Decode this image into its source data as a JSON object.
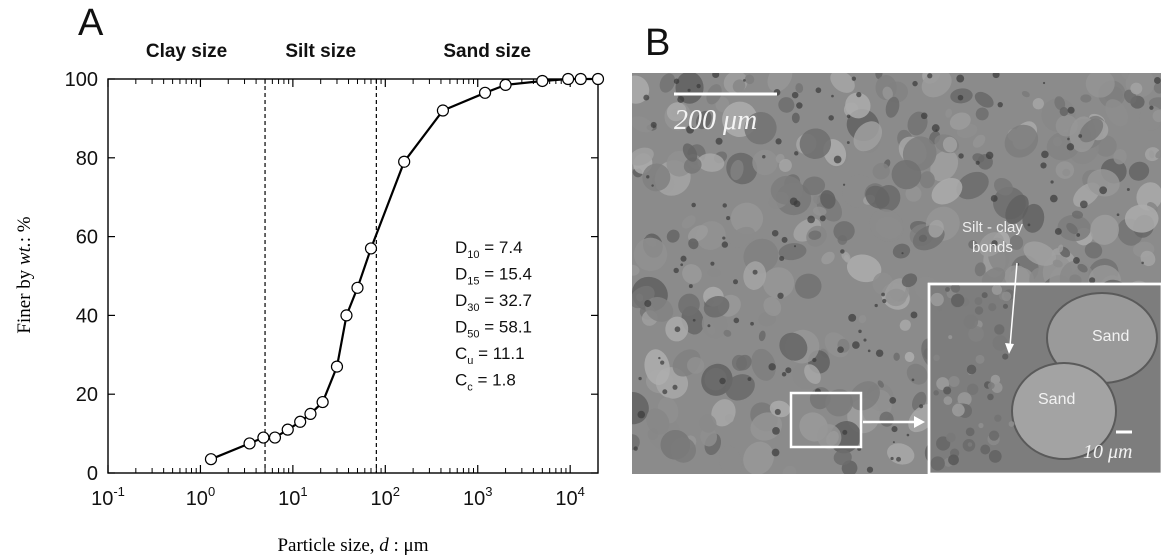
{
  "panel_a_letter": "A",
  "panel_b_letter": "B",
  "chart_data": {
    "type": "scatter",
    "xlabel": "Particle size, d : μm",
    "xlabel_parts": {
      "prefix": "Particle size, ",
      "var": "d",
      "suffix": " : μm"
    },
    "ylabel": "Finer by wt.: %",
    "ylabel_parts": {
      "prefix": "Finer by ",
      "var": "wt.",
      "suffix": ": %"
    },
    "x_scale": "log",
    "xlim": [
      0.1,
      20000
    ],
    "ylim": [
      0,
      100
    ],
    "x_tick_labels": [
      {
        "value": 0.1,
        "base": "10",
        "exp": "-1"
      },
      {
        "value": 1,
        "base": "10",
        "exp": "0"
      },
      {
        "value": 10,
        "base": "10",
        "exp": "1"
      },
      {
        "value": 100,
        "base": "10",
        "exp": "2"
      },
      {
        "value": 1000,
        "base": "10",
        "exp": "3"
      },
      {
        "value": 10000,
        "base": "10",
        "exp": "4"
      }
    ],
    "y_ticks": [
      0,
      20,
      40,
      60,
      80,
      100
    ],
    "grid": false,
    "zones": [
      {
        "label": "Clay size",
        "from": 0.1,
        "to": 5
      },
      {
        "label": "Silt size",
        "from": 5,
        "to": 80
      },
      {
        "label": "Sand size",
        "from": 80,
        "to": 20000
      }
    ],
    "boundaries": [
      5,
      80
    ],
    "series": [
      {
        "marker": "open-circle",
        "line_color": "#000000",
        "points": [
          {
            "x": 1.3,
            "y": 3.5
          },
          {
            "x": 3.4,
            "y": 7.5
          },
          {
            "x": 4.8,
            "y": 9.0
          },
          {
            "x": 6.4,
            "y": 9.0
          },
          {
            "x": 8.8,
            "y": 11.0
          },
          {
            "x": 12,
            "y": 13.0
          },
          {
            "x": 15.5,
            "y": 15.0
          },
          {
            "x": 21,
            "y": 18.0
          },
          {
            "x": 30,
            "y": 27.0
          },
          {
            "x": 38,
            "y": 40.0
          },
          {
            "x": 50,
            "y": 47.0
          },
          {
            "x": 70,
            "y": 57.0
          },
          {
            "x": 160,
            "y": 79.0
          },
          {
            "x": 420,
            "y": 92.0
          },
          {
            "x": 1200,
            "y": 96.5
          },
          {
            "x": 2000,
            "y": 98.5
          },
          {
            "x": 5000,
            "y": 99.5
          },
          {
            "x": 9500,
            "y": 100.0
          },
          {
            "x": 13000,
            "y": 100.0
          },
          {
            "x": 20000,
            "y": 100.0
          }
        ]
      }
    ],
    "annotations": [
      {
        "var": "D",
        "sub": "10",
        "text": " = 7.4"
      },
      {
        "var": "D",
        "sub": "15",
        "text": " = 15.4"
      },
      {
        "var": "D",
        "sub": "30",
        "text": " = 32.7"
      },
      {
        "var": "D",
        "sub": "50",
        "text": " = 58.1"
      },
      {
        "var": "C",
        "sub": "u",
        "text": " = 11.1"
      },
      {
        "var": "C",
        "sub": "c",
        "text": " = 1.8"
      }
    ]
  },
  "sem_image": {
    "scale_bar_label": "200 μm",
    "inset_scale_label": "10 μm",
    "silt_clay_line1": "Silt - clay",
    "silt_clay_line2": "bonds",
    "sand_label_1": "Sand",
    "sand_label_2": "Sand"
  }
}
